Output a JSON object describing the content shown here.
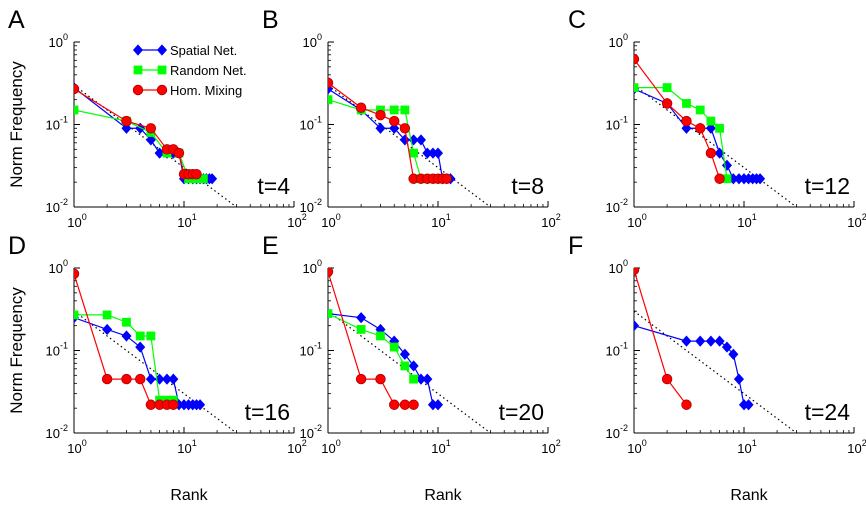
{
  "colors": {
    "spatial": "#0000ff",
    "random": "#00ff00",
    "homog": "#ff0000",
    "reference": "#000000"
  },
  "shared": {
    "ylabel": "Norm Frequency",
    "xlabel": "Rank",
    "x_ticks": [
      {
        "base": "10",
        "exp": "0"
      },
      {
        "base": "10",
        "exp": "1"
      },
      {
        "base": "10",
        "exp": "2"
      }
    ],
    "y_ticks": [
      {
        "base": "10",
        "exp": "-2"
      },
      {
        "base": "10",
        "exp": "-1"
      },
      {
        "base": "10",
        "exp": "0"
      }
    ],
    "legend": [
      {
        "key": "spatial",
        "label": "Spatial Net.",
        "marker": "diamond"
      },
      {
        "key": "random",
        "label": "Random Net.",
        "marker": "square"
      },
      {
        "key": "homog",
        "label": "Hom. Mixing",
        "marker": "circle"
      }
    ]
  },
  "chart_data": [
    {
      "panel": "A",
      "type": "line",
      "annotation": "t=4",
      "x_scale": "log",
      "y_scale": "log",
      "xlim": [
        1,
        100
      ],
      "ylim": [
        0.01,
        1
      ],
      "grid": false,
      "legend_position": "top-right",
      "reference_line": {
        "style": "dotted",
        "x": [
          1,
          30
        ],
        "y": [
          0.3,
          0.01
        ]
      },
      "series": [
        {
          "name": "Spatial Net.",
          "key": "spatial",
          "marker": "diamond",
          "x": [
            1,
            3,
            4,
            5,
            6,
            7,
            8,
            9,
            10,
            11,
            12,
            13,
            14,
            15,
            16,
            17,
            18
          ],
          "y": [
            0.28,
            0.09,
            0.09,
            0.065,
            0.045,
            0.045,
            0.045,
            0.045,
            0.022,
            0.022,
            0.022,
            0.022,
            0.022,
            0.022,
            0.022,
            0.022,
            0.022
          ]
        },
        {
          "name": "Random Net.",
          "key": "random",
          "marker": "square",
          "x": [
            1,
            3,
            5,
            7,
            9,
            11,
            13,
            15
          ],
          "y": [
            0.15,
            0.11,
            0.08,
            0.045,
            0.045,
            0.022,
            0.022,
            0.022
          ]
        },
        {
          "name": "Hom. Mixing",
          "key": "homog",
          "marker": "circle",
          "x": [
            1,
            3,
            5,
            7,
            8,
            9,
            10,
            11,
            12,
            13
          ],
          "y": [
            0.27,
            0.11,
            0.09,
            0.05,
            0.05,
            0.045,
            0.025,
            0.025,
            0.025,
            0.025
          ]
        }
      ]
    },
    {
      "panel": "B",
      "type": "line",
      "annotation": "t=8",
      "x_scale": "log",
      "y_scale": "log",
      "xlim": [
        1,
        100
      ],
      "ylim": [
        0.01,
        1
      ],
      "grid": false,
      "legend_position": "none",
      "reference_line": {
        "style": "dotted",
        "x": [
          1,
          30
        ],
        "y": [
          0.3,
          0.01
        ]
      },
      "series": [
        {
          "name": "Spatial Net.",
          "key": "spatial",
          "marker": "diamond",
          "x": [
            1,
            2,
            3,
            4,
            5,
            6,
            7,
            8,
            9,
            10,
            11,
            12,
            13
          ],
          "y": [
            0.27,
            0.15,
            0.09,
            0.09,
            0.065,
            0.065,
            0.065,
            0.045,
            0.045,
            0.045,
            0.022,
            0.022,
            0.022
          ]
        },
        {
          "name": "Random Net.",
          "key": "random",
          "marker": "square",
          "x": [
            1,
            2,
            3,
            4,
            5,
            6,
            7
          ],
          "y": [
            0.2,
            0.15,
            0.15,
            0.15,
            0.15,
            0.045,
            0.022
          ]
        },
        {
          "name": "Hom. Mixing",
          "key": "homog",
          "marker": "circle",
          "x": [
            1,
            2,
            3,
            4,
            5,
            6,
            7,
            8,
            9,
            10,
            11,
            12
          ],
          "y": [
            0.32,
            0.16,
            0.13,
            0.11,
            0.09,
            0.022,
            0.022,
            0.022,
            0.022,
            0.022,
            0.022,
            0.022
          ]
        }
      ]
    },
    {
      "panel": "C",
      "type": "line",
      "annotation": "t=12",
      "x_scale": "log",
      "y_scale": "log",
      "xlim": [
        1,
        100
      ],
      "ylim": [
        0.01,
        1
      ],
      "grid": false,
      "legend_position": "none",
      "reference_line": {
        "style": "dotted",
        "x": [
          1,
          30
        ],
        "y": [
          0.3,
          0.01
        ]
      },
      "series": [
        {
          "name": "Spatial Net.",
          "key": "spatial",
          "marker": "diamond",
          "x": [
            1,
            2,
            3,
            4,
            5,
            6,
            7,
            8,
            9,
            10,
            11,
            12,
            13,
            14
          ],
          "y": [
            0.27,
            0.18,
            0.09,
            0.09,
            0.09,
            0.045,
            0.032,
            0.022,
            0.022,
            0.022,
            0.022,
            0.022,
            0.022,
            0.022
          ]
        },
        {
          "name": "Random Net.",
          "key": "random",
          "marker": "square",
          "x": [
            1,
            2,
            3,
            4,
            5,
            6,
            7
          ],
          "y": [
            0.28,
            0.28,
            0.18,
            0.15,
            0.11,
            0.09,
            0.022
          ]
        },
        {
          "name": "Hom. Mixing",
          "key": "homog",
          "marker": "circle",
          "x": [
            1,
            2,
            3,
            4,
            5,
            6
          ],
          "y": [
            0.62,
            0.18,
            0.11,
            0.09,
            0.045,
            0.022
          ]
        }
      ]
    },
    {
      "panel": "D",
      "type": "line",
      "annotation": "t=16",
      "x_scale": "log",
      "y_scale": "log",
      "xlim": [
        1,
        100
      ],
      "ylim": [
        0.01,
        1
      ],
      "grid": false,
      "legend_position": "none",
      "reference_line": {
        "style": "dotted",
        "x": [
          1,
          30
        ],
        "y": [
          0.3,
          0.01
        ]
      },
      "series": [
        {
          "name": "Spatial Net.",
          "key": "spatial",
          "marker": "diamond",
          "x": [
            1,
            2,
            3,
            4,
            5,
            6,
            7,
            8,
            9,
            10,
            11,
            12,
            13,
            14
          ],
          "y": [
            0.25,
            0.18,
            0.15,
            0.11,
            0.045,
            0.045,
            0.045,
            0.045,
            0.022,
            0.022,
            0.022,
            0.022,
            0.022,
            0.022
          ]
        },
        {
          "name": "Random Net.",
          "key": "random",
          "marker": "square",
          "x": [
            1,
            2,
            3,
            4,
            5,
            6,
            7,
            8
          ],
          "y": [
            0.27,
            0.27,
            0.22,
            0.15,
            0.15,
            0.025,
            0.025,
            0.025
          ]
        },
        {
          "name": "Hom. Mixing",
          "key": "homog",
          "marker": "circle",
          "x": [
            1,
            2,
            3,
            4,
            5,
            6,
            7,
            8
          ],
          "y": [
            0.85,
            0.045,
            0.045,
            0.045,
            0.022,
            0.022,
            0.022,
            0.022
          ]
        }
      ]
    },
    {
      "panel": "E",
      "type": "line",
      "annotation": "t=20",
      "x_scale": "log",
      "y_scale": "log",
      "xlim": [
        1,
        100
      ],
      "ylim": [
        0.01,
        1
      ],
      "grid": false,
      "legend_position": "none",
      "reference_line": {
        "style": "dotted",
        "x": [
          1,
          30
        ],
        "y": [
          0.3,
          0.01
        ]
      },
      "series": [
        {
          "name": "Spatial Net.",
          "key": "spatial",
          "marker": "diamond",
          "x": [
            1,
            2,
            3,
            4,
            5,
            6,
            7,
            8,
            9,
            10
          ],
          "y": [
            0.28,
            0.25,
            0.18,
            0.13,
            0.09,
            0.065,
            0.045,
            0.045,
            0.022,
            0.022
          ]
        },
        {
          "name": "Random Net.",
          "key": "random",
          "marker": "square",
          "x": [
            1,
            2,
            3,
            4,
            5,
            6
          ],
          "y": [
            0.28,
            0.18,
            0.15,
            0.11,
            0.065,
            0.045
          ]
        },
        {
          "name": "Hom. Mixing",
          "key": "homog",
          "marker": "circle",
          "x": [
            1,
            2,
            3,
            4,
            5,
            6
          ],
          "y": [
            0.9,
            0.045,
            0.045,
            0.022,
            0.022,
            0.022
          ]
        }
      ]
    },
    {
      "panel": "F",
      "type": "line",
      "annotation": "t=24",
      "x_scale": "log",
      "y_scale": "log",
      "xlim": [
        1,
        100
      ],
      "ylim": [
        0.01,
        1
      ],
      "grid": false,
      "legend_position": "none",
      "reference_line": {
        "style": "dotted",
        "x": [
          1,
          30
        ],
        "y": [
          0.3,
          0.01
        ]
      },
      "series": [
        {
          "name": "Spatial Net.",
          "key": "spatial",
          "marker": "diamond",
          "x": [
            1,
            3,
            4,
            5,
            6,
            7,
            8,
            9,
            10,
            11
          ],
          "y": [
            0.2,
            0.13,
            0.13,
            0.13,
            0.13,
            0.11,
            0.09,
            0.045,
            0.022,
            0.022
          ]
        },
        {
          "name": "Hom. Mixing",
          "key": "homog",
          "marker": "circle",
          "x": [
            1,
            2,
            3
          ],
          "y": [
            0.95,
            0.045,
            0.022
          ]
        }
      ]
    }
  ]
}
